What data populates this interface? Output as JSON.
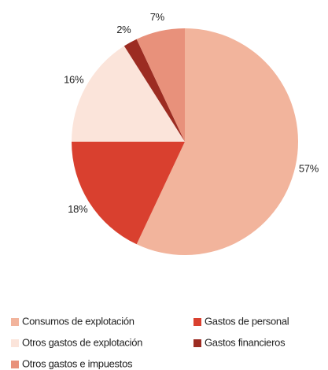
{
  "chart_data": {
    "type": "pie",
    "categories": [
      "Consumos de explotación",
      "Gastos de personal",
      "Otros  gastos de explotación",
      "Gastos financieros",
      "Otros gastos e impuestos"
    ],
    "values": [
      57,
      18,
      16,
      2,
      7
    ],
    "value_labels": [
      "57%",
      "18%",
      "16%",
      "2%",
      "7%"
    ],
    "colors": [
      "#f2b49c",
      "#d9402f",
      "#fbe4da",
      "#9c2c22",
      "#e8917b"
    ],
    "legend": "bottom"
  }
}
